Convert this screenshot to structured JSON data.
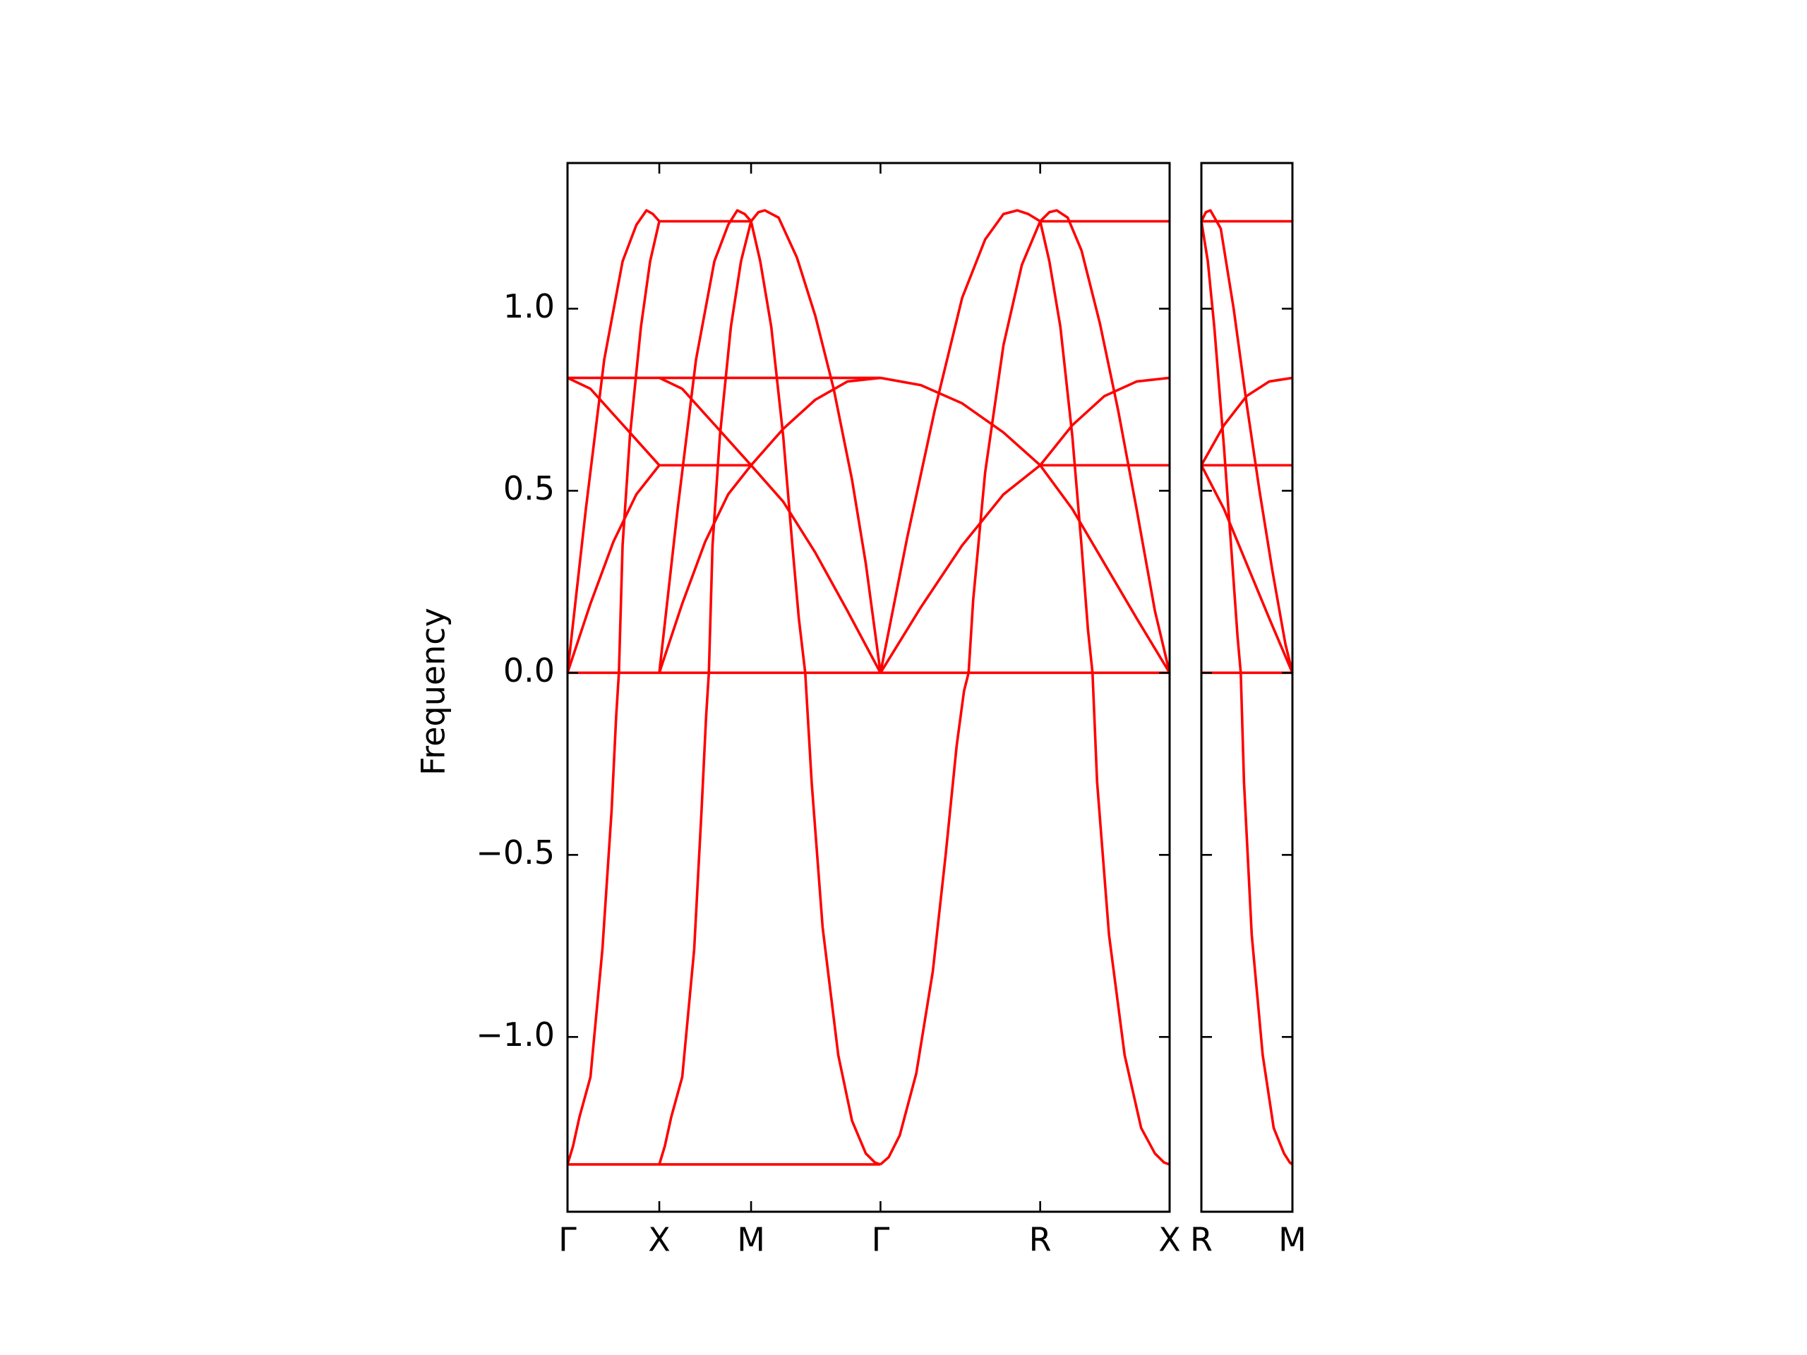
{
  "chart_data": [
    {
      "type": "line",
      "ylabel": "Frequency",
      "color": "#ff0000",
      "xlim": [
        0,
        6.56
      ],
      "ylim": [
        -1.48,
        1.4
      ],
      "xticks": [
        {
          "value": 0,
          "label": "Γ"
        },
        {
          "value": 1,
          "label": "X"
        },
        {
          "value": 2,
          "label": "M"
        },
        {
          "value": 3.41,
          "label": "Γ"
        },
        {
          "value": 5.15,
          "label": "R"
        },
        {
          "value": 6.56,
          "label": "X"
        }
      ],
      "yticks": [
        {
          "value": -1.0,
          "label": "−1.0"
        },
        {
          "value": -0.5,
          "label": "−0.5"
        },
        {
          "value": 0.0,
          "label": "0.0"
        },
        {
          "value": 0.5,
          "label": "0.5"
        },
        {
          "value": 1.0,
          "label": "1.0"
        }
      ],
      "series": [
        {
          "x": [
            0,
            6.56
          ],
          "values": [
            0,
            0
          ]
        },
        {
          "x": [
            0,
            3.41
          ],
          "values": [
            -1.35,
            -1.35
          ]
        },
        {
          "x": [
            0,
            3.41
          ],
          "values": [
            0.81,
            0.81
          ]
        },
        {
          "x": [
            1,
            2
          ],
          "values": [
            1.24,
            1.24
          ]
        },
        {
          "x": [
            1,
            2
          ],
          "values": [
            0.57,
            0.57
          ]
        },
        {
          "x": [
            5.15,
            6.56
          ],
          "values": [
            1.24,
            1.24
          ]
        },
        {
          "x": [
            5.15,
            6.56
          ],
          "values": [
            0.57,
            0.57
          ]
        },
        {
          "x": [
            0,
            0.2,
            0.4,
            0.6,
            0.75,
            0.86,
            0.93,
            1
          ],
          "values": [
            0,
            0.45,
            0.86,
            1.13,
            1.23,
            1.27,
            1.26,
            1.24
          ]
        },
        {
          "x": [
            0,
            0.06,
            0.13,
            0.25,
            0.38,
            0.48,
            0.53,
            0.56,
            0.6,
            0.68,
            0.8,
            0.9,
            1
          ],
          "values": [
            -1.35,
            -1.3,
            -1.22,
            -1.11,
            -0.76,
            -0.38,
            -0.12,
            0,
            0.35,
            0.65,
            0.95,
            1.13,
            1.24
          ]
        },
        {
          "x": [
            0,
            0.25,
            0.5,
            0.75,
            1
          ],
          "values": [
            0.81,
            0.78,
            0.71,
            0.64,
            0.57
          ]
        },
        {
          "x": [
            0,
            0.25,
            0.5,
            0.75,
            1
          ],
          "values": [
            0,
            0.19,
            0.36,
            0.49,
            0.57
          ]
        },
        {
          "x": [
            1,
            1.2,
            1.4,
            1.6,
            1.75,
            1.85,
            1.93,
            2
          ],
          "values": [
            0,
            0.45,
            0.86,
            1.13,
            1.23,
            1.27,
            1.26,
            1.24
          ]
        },
        {
          "x": [
            1,
            1.06,
            1.13,
            1.25,
            1.38,
            1.46,
            1.51,
            1.54,
            1.58,
            1.66,
            1.78,
            1.89,
            2
          ],
          "values": [
            -1.35,
            -1.3,
            -1.22,
            -1.11,
            -0.76,
            -0.38,
            -0.12,
            0,
            0.35,
            0.65,
            0.95,
            1.13,
            1.24
          ]
        },
        {
          "x": [
            1,
            1.25,
            1.5,
            1.75,
            2,
            2.35,
            2.7,
            3.05,
            3.41
          ],
          "values": [
            0,
            0.19,
            0.36,
            0.49,
            0.57,
            0.67,
            0.75,
            0.8,
            0.81
          ]
        },
        {
          "x": [
            1,
            1.25,
            1.5,
            1.75,
            2,
            2.35,
            2.7,
            3.05,
            3.41
          ],
          "values": [
            0.81,
            0.78,
            0.71,
            0.64,
            0.57,
            0.47,
            0.33,
            0.17,
            0
          ]
        },
        {
          "x": [
            2,
            2.08,
            2.15,
            2.3,
            2.5,
            2.7,
            2.9,
            3.1,
            3.25,
            3.41
          ],
          "values": [
            1.24,
            1.265,
            1.27,
            1.25,
            1.14,
            0.98,
            0.78,
            0.53,
            0.3,
            0
          ]
        },
        {
          "x": [
            2,
            2.1,
            2.22,
            2.35,
            2.45,
            2.52,
            2.59,
            2.66,
            2.78,
            2.95,
            3.1,
            3.25,
            3.35,
            3.41
          ],
          "values": [
            1.24,
            1.13,
            0.95,
            0.65,
            0.35,
            0.15,
            0,
            -0.3,
            -0.7,
            -1.05,
            -1.23,
            -1.32,
            -1.345,
            -1.35
          ]
        },
        {
          "x": [
            3.41,
            3.7,
            4.0,
            4.3,
            4.55,
            4.75,
            4.9,
            5.02,
            5.15
          ],
          "values": [
            0,
            0.37,
            0.72,
            1.03,
            1.19,
            1.26,
            1.27,
            1.26,
            1.24
          ]
        },
        {
          "x": [
            3.41,
            3.5,
            3.62,
            3.8,
            3.98,
            4.12,
            4.24,
            4.32,
            4.37,
            4.42,
            4.55,
            4.75,
            4.95,
            5.15
          ],
          "values": [
            -1.35,
            -1.33,
            -1.27,
            -1.1,
            -0.82,
            -0.5,
            -0.2,
            -0.05,
            0,
            0.2,
            0.55,
            0.9,
            1.12,
            1.24
          ]
        },
        {
          "x": [
            3.41,
            3.85,
            4.3,
            4.75,
            5.15,
            5.5,
            5.85,
            6.2,
            6.56
          ],
          "values": [
            0.81,
            0.79,
            0.74,
            0.66,
            0.57,
            0.45,
            0.3,
            0.15,
            0
          ]
        },
        {
          "x": [
            3.41,
            3.85,
            4.3,
            4.75,
            5.15,
            5.5,
            5.85,
            6.2,
            6.56
          ],
          "values": [
            0,
            0.18,
            0.35,
            0.49,
            0.57,
            0.68,
            0.76,
            0.8,
            0.81
          ]
        },
        {
          "x": [
            5.15,
            5.25,
            5.33,
            5.45,
            5.6,
            5.8,
            6.0,
            6.2,
            6.4,
            6.56
          ],
          "values": [
            1.24,
            1.265,
            1.27,
            1.25,
            1.16,
            0.96,
            0.72,
            0.45,
            0.17,
            0
          ]
        },
        {
          "x": [
            5.15,
            5.25,
            5.37,
            5.5,
            5.6,
            5.67,
            5.72,
            5.77,
            5.9,
            6.07,
            6.25,
            6.4,
            6.5,
            6.56
          ],
          "values": [
            1.24,
            1.13,
            0.95,
            0.65,
            0.35,
            0.12,
            0,
            -0.3,
            -0.72,
            -1.05,
            -1.25,
            -1.32,
            -1.345,
            -1.35
          ]
        }
      ]
    },
    {
      "type": "line",
      "color": "#ff0000",
      "xlim": [
        0,
        1.41
      ],
      "ylim": [
        -1.48,
        1.4
      ],
      "xticks": [
        {
          "value": 0,
          "label": "R"
        },
        {
          "value": 1.41,
          "label": "M"
        }
      ],
      "yticks": [
        -1,
        -0.5,
        0,
        0.5,
        1
      ],
      "series": [
        {
          "x": [
            0,
            1.41
          ],
          "values": [
            0,
            0
          ]
        },
        {
          "x": [
            0,
            1.41
          ],
          "values": [
            0.57,
            0.57
          ]
        },
        {
          "x": [
            0,
            1.41
          ],
          "values": [
            1.24,
            1.24
          ]
        },
        {
          "x": [
            0,
            0.07,
            0.14,
            0.3,
            0.5,
            0.7,
            0.9,
            1.1,
            1.3,
            1.41
          ],
          "values": [
            1.24,
            1.265,
            1.27,
            1.22,
            1.0,
            0.74,
            0.5,
            0.28,
            0.08,
            0
          ]
        },
        {
          "x": [
            0,
            0.1,
            0.2,
            0.35,
            0.48,
            0.56,
            0.61,
            0.66,
            0.78,
            0.95,
            1.12,
            1.28,
            1.37,
            1.41
          ],
          "values": [
            1.24,
            1.13,
            0.95,
            0.62,
            0.3,
            0.1,
            0,
            -0.3,
            -0.72,
            -1.05,
            -1.25,
            -1.32,
            -1.345,
            -1.35
          ]
        },
        {
          "x": [
            0,
            0.35,
            0.7,
            1.05,
            1.41
          ],
          "values": [
            0.57,
            0.68,
            0.76,
            0.8,
            0.81
          ]
        },
        {
          "x": [
            0,
            0.35,
            0.7,
            1.05,
            1.41
          ],
          "values": [
            0.57,
            0.45,
            0.3,
            0.15,
            0
          ]
        }
      ]
    }
  ]
}
